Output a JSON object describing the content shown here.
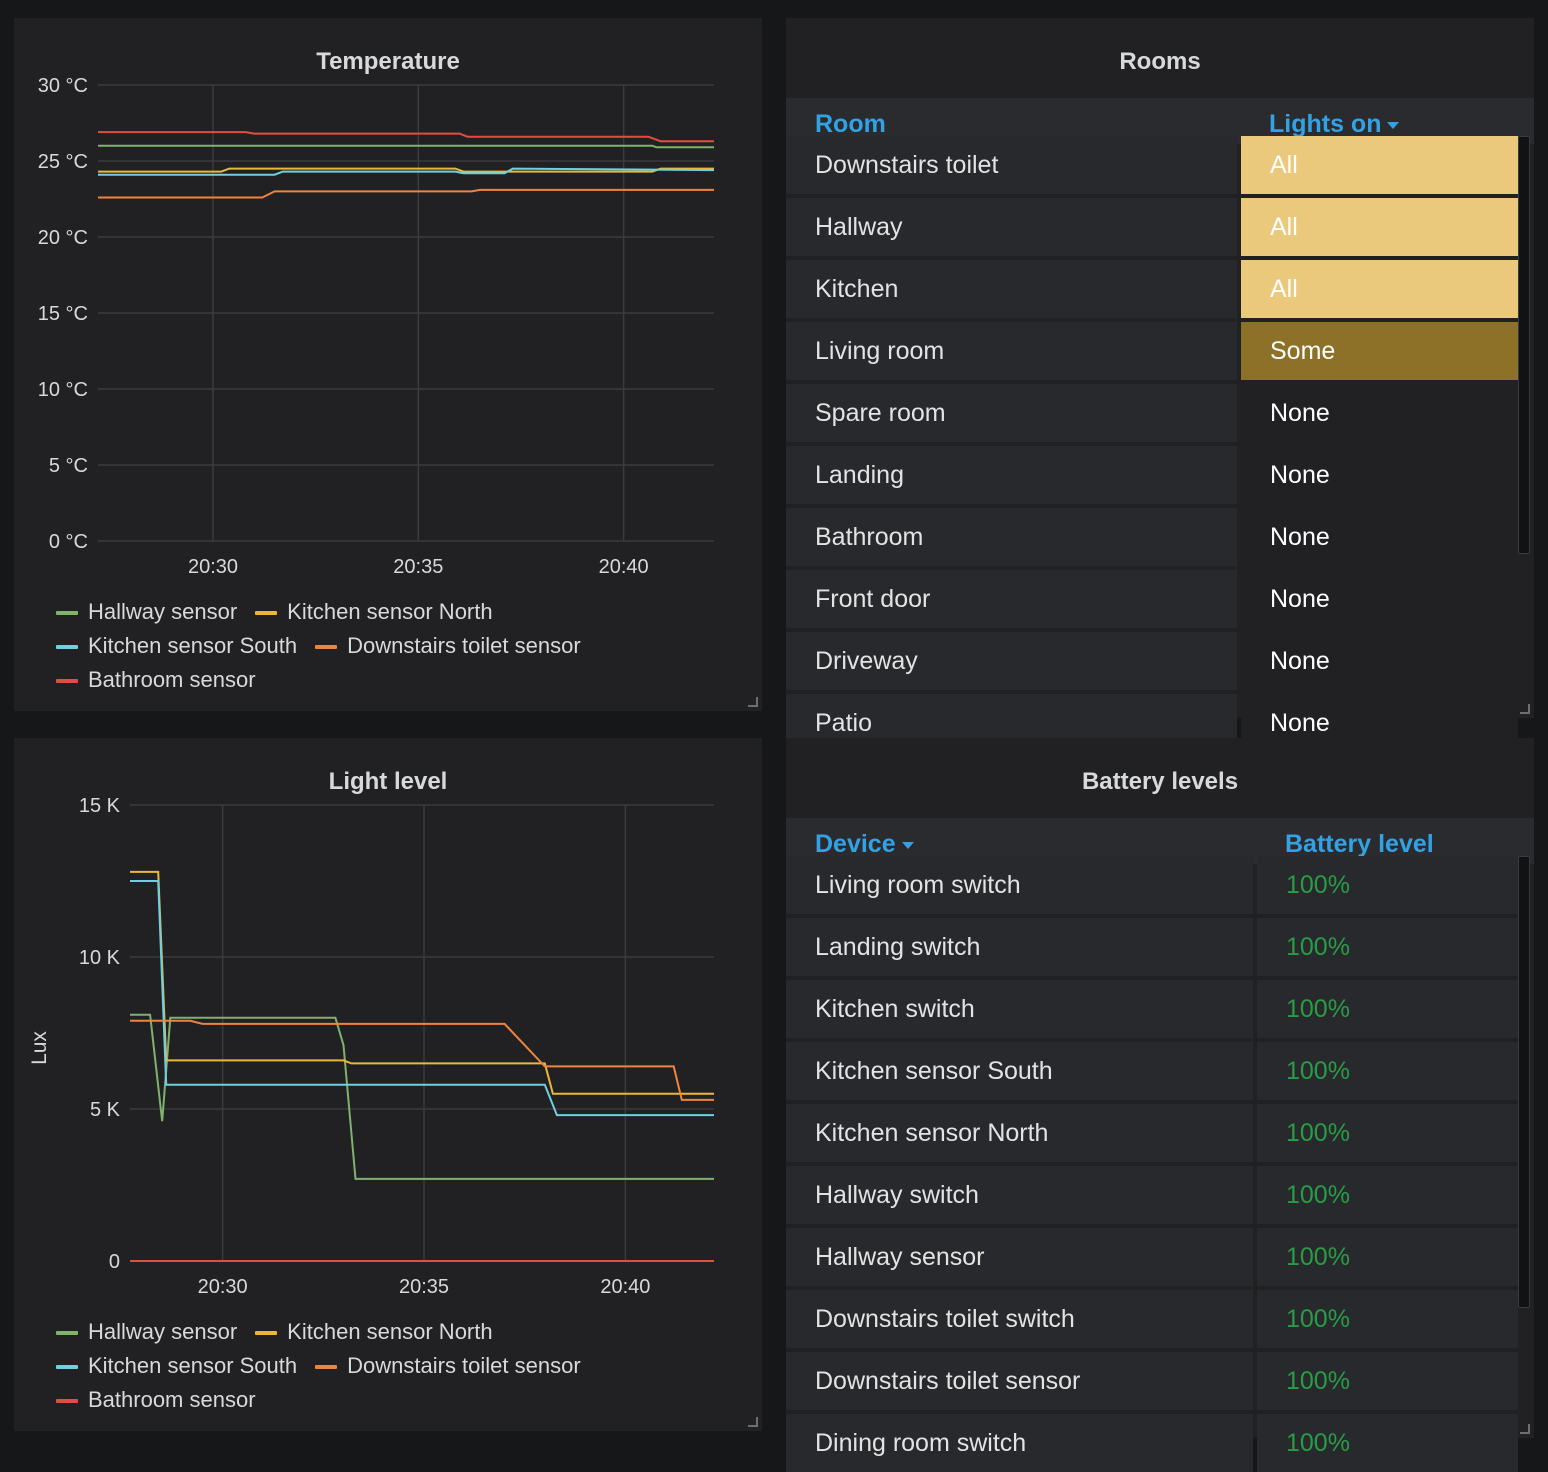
{
  "temperature": {
    "title": "Temperature",
    "y_ticks": [
      "30 °C",
      "25 °C",
      "20 °C",
      "15 °C",
      "10 °C",
      "5 °C",
      "0 °C"
    ],
    "x_ticks": [
      "20:30",
      "20:35",
      "20:40"
    ],
    "legend": [
      {
        "label": "Hallway sensor",
        "color": "#7eb26d"
      },
      {
        "label": "Kitchen sensor North",
        "color": "#eab839"
      },
      {
        "label": "Kitchen sensor South",
        "color": "#6ed0e0"
      },
      {
        "label": "Downstairs toilet sensor",
        "color": "#ef843c"
      },
      {
        "label": "Bathroom sensor",
        "color": "#e24d42"
      }
    ]
  },
  "light": {
    "title": "Light level",
    "y_axis_label": "Lux",
    "y_ticks": [
      "15 K",
      "10 K",
      "5 K",
      "0"
    ],
    "x_ticks": [
      "20:30",
      "20:35",
      "20:40"
    ],
    "legend": [
      {
        "label": "Hallway sensor",
        "color": "#7eb26d"
      },
      {
        "label": "Kitchen sensor North",
        "color": "#eab839"
      },
      {
        "label": "Kitchen sensor South",
        "color": "#6ed0e0"
      },
      {
        "label": "Downstairs toilet sensor",
        "color": "#ef843c"
      },
      {
        "label": "Bathroom sensor",
        "color": "#e24d42"
      }
    ]
  },
  "chart_data": [
    {
      "type": "line",
      "title": "Temperature",
      "xlabel": "",
      "ylabel": "",
      "x_unit": "minutes past 20:00",
      "xlim": [
        27.2,
        42.2
      ],
      "ylim": [
        0,
        30
      ],
      "y_tick_values": [
        0,
        5,
        10,
        15,
        20,
        25,
        30
      ],
      "x_tick_values": [
        30,
        35,
        40
      ],
      "series": [
        {
          "name": "Hallway sensor",
          "color": "#7eb26d",
          "x": [
            27.2,
            40.7,
            40.8,
            42.2
          ],
          "y": [
            26.0,
            26.0,
            25.9,
            25.9
          ]
        },
        {
          "name": "Kitchen sensor North",
          "color": "#eab839",
          "x": [
            27.2,
            30.2,
            30.4,
            35.9,
            36.1,
            40.7,
            40.9,
            42.2
          ],
          "y": [
            24.3,
            24.3,
            24.5,
            24.5,
            24.3,
            24.3,
            24.5,
            24.5
          ]
        },
        {
          "name": "Kitchen sensor South",
          "color": "#6ed0e0",
          "x": [
            27.2,
            31.5,
            31.7,
            35.9,
            36.1,
            37.1,
            37.3,
            42.2
          ],
          "y": [
            24.1,
            24.1,
            24.3,
            24.3,
            24.2,
            24.2,
            24.5,
            24.4
          ]
        },
        {
          "name": "Downstairs toilet sensor",
          "color": "#ef843c",
          "x": [
            27.2,
            31.2,
            31.5,
            36.3,
            36.5,
            42.2
          ],
          "y": [
            22.6,
            22.6,
            23.0,
            23.0,
            23.1,
            23.1
          ]
        },
        {
          "name": "Bathroom sensor",
          "color": "#e24d42",
          "x": [
            27.2,
            30.8,
            31.0,
            36.0,
            36.2,
            40.6,
            40.9,
            42.2
          ],
          "y": [
            26.9,
            26.9,
            26.8,
            26.8,
            26.6,
            26.6,
            26.3,
            26.3
          ]
        }
      ]
    },
    {
      "type": "line",
      "title": "Light level",
      "xlabel": "",
      "ylabel": "Lux",
      "x_unit": "minutes past 20:00",
      "xlim": [
        27.7,
        42.2
      ],
      "ylim": [
        0,
        15000
      ],
      "y_tick_values": [
        0,
        5000,
        10000,
        15000
      ],
      "x_tick_values": [
        30,
        35,
        40
      ],
      "series": [
        {
          "name": "Hallway sensor",
          "color": "#7eb26d",
          "x": [
            27.7,
            28.2,
            28.5,
            28.7,
            32.8,
            33.0,
            33.3,
            42.2
          ],
          "y": [
            8100,
            8100,
            4600,
            8000,
            8000,
            7100,
            2700,
            2700
          ]
        },
        {
          "name": "Kitchen sensor North",
          "color": "#eab839",
          "x": [
            27.7,
            28.4,
            28.6,
            33.0,
            33.2,
            38.0,
            38.2,
            42.2
          ],
          "y": [
            12800,
            12800,
            6600,
            6600,
            6500,
            6500,
            5500,
            5500
          ]
        },
        {
          "name": "Kitchen sensor South",
          "color": "#6ed0e0",
          "x": [
            27.7,
            28.4,
            28.6,
            38.0,
            38.3,
            42.2
          ],
          "y": [
            12500,
            12500,
            5800,
            5800,
            4800,
            4800
          ]
        },
        {
          "name": "Downstairs toilet sensor",
          "color": "#ef843c",
          "x": [
            27.7,
            29.2,
            29.5,
            30.0,
            33.0,
            37.0,
            38.0,
            39.6,
            41.2,
            41.4,
            42.2
          ],
          "y": [
            7900,
            7900,
            7800,
            7800,
            7800,
            7800,
            6400,
            6400,
            6400,
            5300,
            5300
          ]
        },
        {
          "name": "Bathroom sensor",
          "color": "#e24d42",
          "x": [
            27.7,
            42.2
          ],
          "y": [
            0,
            0
          ]
        }
      ]
    }
  ],
  "rooms": {
    "title": "Rooms",
    "columns": [
      "Room",
      "Lights on"
    ],
    "rows": [
      {
        "room": "Downstairs toilet",
        "lights": "All",
        "bg": "#eac97c",
        "fg": "#ffffff"
      },
      {
        "room": "Hallway",
        "lights": "All",
        "bg": "#eac97c",
        "fg": "#ffffff"
      },
      {
        "room": "Kitchen",
        "lights": "All",
        "bg": "#eac97c",
        "fg": "#ffffff"
      },
      {
        "room": "Living room",
        "lights": "Some",
        "bg": "#8d7128",
        "fg": "#ffffff"
      },
      {
        "room": "Spare room",
        "lights": "None",
        "bg": "#212124",
        "fg": "#ffffff"
      },
      {
        "room": "Landing",
        "lights": "None",
        "bg": "#212124",
        "fg": "#ffffff"
      },
      {
        "room": "Bathroom",
        "lights": "None",
        "bg": "#212124",
        "fg": "#ffffff"
      },
      {
        "room": "Front door",
        "lights": "None",
        "bg": "#212124",
        "fg": "#ffffff"
      },
      {
        "room": "Driveway",
        "lights": "None",
        "bg": "#212124",
        "fg": "#ffffff"
      },
      {
        "room": "Patio",
        "lights": "None",
        "bg": "#212124",
        "fg": "#ffffff"
      }
    ]
  },
  "battery": {
    "title": "Battery levels",
    "columns": [
      "Device",
      "Battery level"
    ],
    "value_color": "#299c46",
    "rows": [
      {
        "device": "Living room switch",
        "level": "100%"
      },
      {
        "device": "Landing switch",
        "level": "100%"
      },
      {
        "device": "Kitchen switch",
        "level": "100%"
      },
      {
        "device": "Kitchen sensor South",
        "level": "100%"
      },
      {
        "device": "Kitchen sensor North",
        "level": "100%"
      },
      {
        "device": "Hallway switch",
        "level": "100%"
      },
      {
        "device": "Hallway sensor",
        "level": "100%"
      },
      {
        "device": "Downstairs toilet switch",
        "level": "100%"
      },
      {
        "device": "Downstairs toilet sensor",
        "level": "100%"
      },
      {
        "device": "Dining room switch",
        "level": "100%"
      }
    ]
  }
}
